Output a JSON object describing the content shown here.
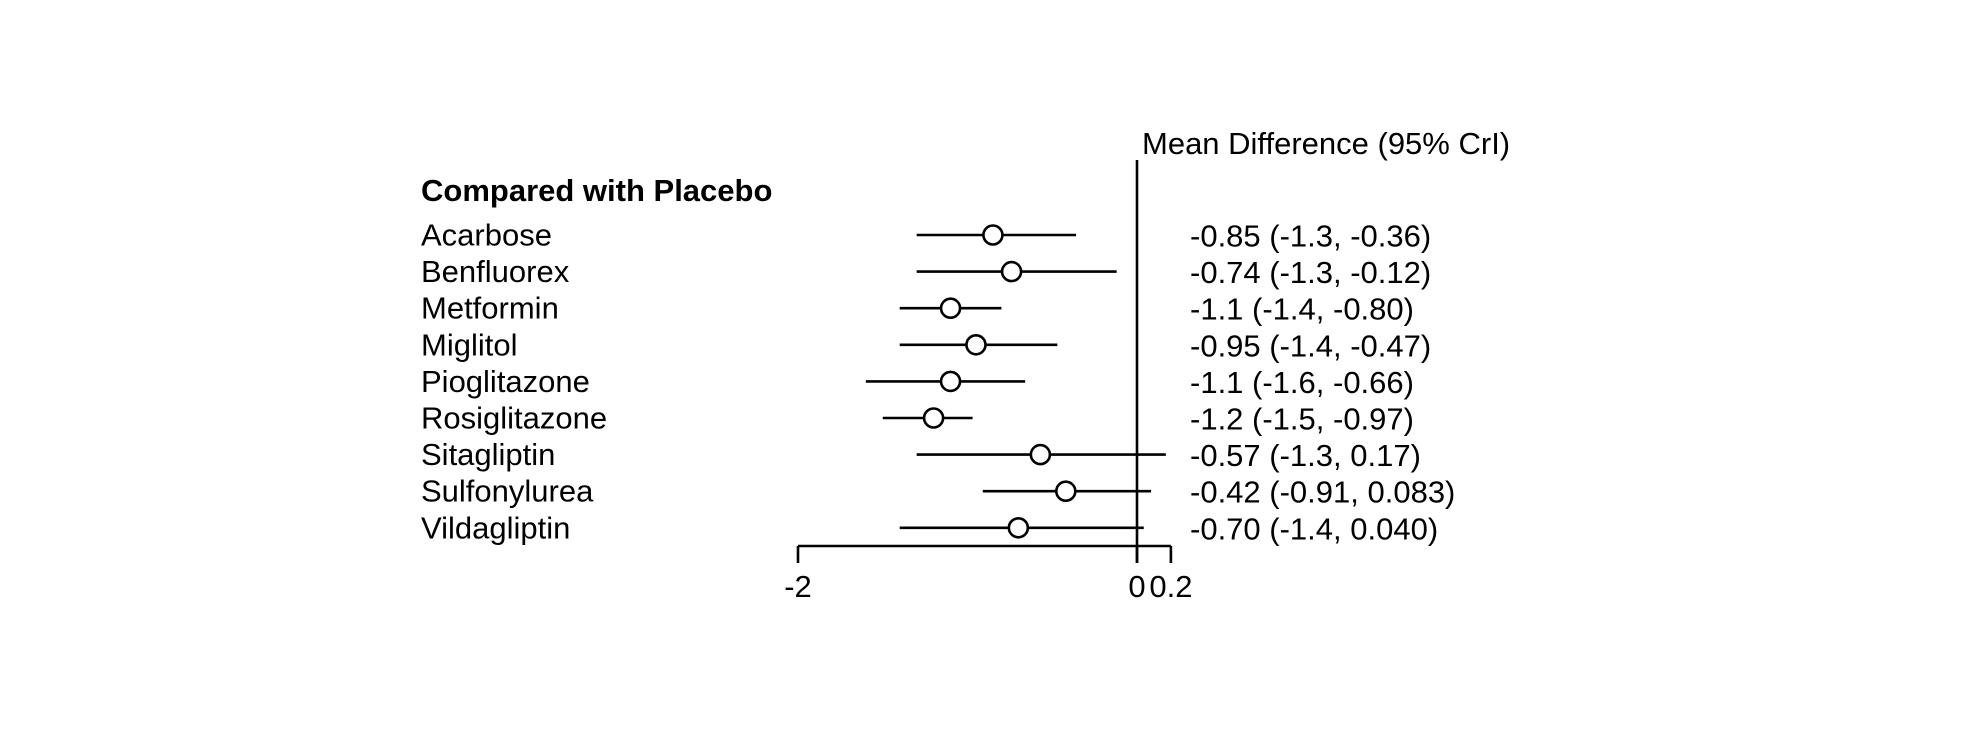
{
  "chart_data": {
    "type": "forest",
    "title": "Mean Difference (95% CrI)",
    "group_header": "Compared with Placebo",
    "rows": [
      {
        "label": "Acarbose",
        "estimate": -0.85,
        "lower": -1.3,
        "upper": -0.36,
        "text": "-0.85 (-1.3, -0.36)"
      },
      {
        "label": "Benfluorex",
        "estimate": -0.74,
        "lower": -1.3,
        "upper": -0.12,
        "text": "-0.74 (-1.3, -0.12)"
      },
      {
        "label": "Metformin",
        "estimate": -1.1,
        "lower": -1.4,
        "upper": -0.8,
        "text": "-1.1 (-1.4, -0.80)"
      },
      {
        "label": "Miglitol",
        "estimate": -0.95,
        "lower": -1.4,
        "upper": -0.47,
        "text": "-0.95 (-1.4, -0.47)"
      },
      {
        "label": "Pioglitazone",
        "estimate": -1.1,
        "lower": -1.6,
        "upper": -0.66,
        "text": "-1.1 (-1.6, -0.66)"
      },
      {
        "label": "Rosiglitazone",
        "estimate": -1.2,
        "lower": -1.5,
        "upper": -0.97,
        "text": "-1.2 (-1.5, -0.97)"
      },
      {
        "label": "Sitagliptin",
        "estimate": -0.57,
        "lower": -1.3,
        "upper": 0.17,
        "text": "-0.57 (-1.3, 0.17)"
      },
      {
        "label": "Sulfonylurea",
        "estimate": -0.42,
        "lower": -0.91,
        "upper": 0.083,
        "text": "-0.42 (-0.91, 0.083)"
      },
      {
        "label": "Vildagliptin",
        "estimate": -0.7,
        "lower": -1.4,
        "upper": 0.04,
        "text": "-0.70 (-1.4, 0.040)"
      }
    ],
    "axis": {
      "range": [
        -2,
        0.2
      ],
      "zero_line": 0,
      "ticks": [
        {
          "value": -2,
          "label": "-2"
        },
        {
          "value": 0,
          "label": "0"
        },
        {
          "value": 0.2,
          "label": "0.2"
        }
      ]
    },
    "legend_position": "none",
    "grid": false,
    "colors": {
      "foreground": "#000000",
      "background": "#ffffff",
      "marker_fill": "#ffffff"
    }
  }
}
